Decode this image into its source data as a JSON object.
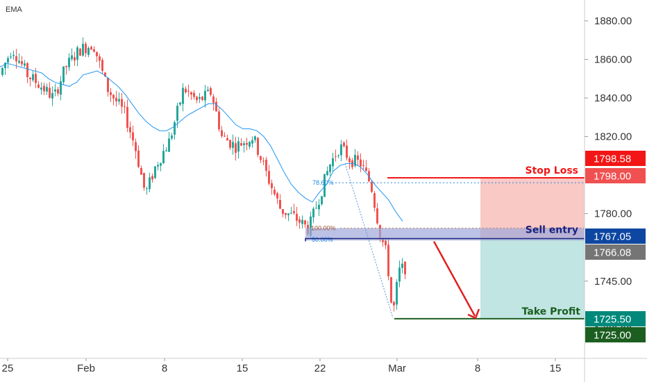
{
  "chart_data": {
    "type": "candlestick",
    "indicator": "EMA",
    "y_ticks": [
      1880.0,
      1860.0,
      1840.0,
      1820.0,
      1780.0,
      1745.0
    ],
    "y_tick_labels": [
      "1880.00",
      "1860.00",
      "1840.00",
      "1820.00",
      "1780.00",
      "1745.00"
    ],
    "x_tick_labels": [
      "25",
      "Feb",
      "8",
      "15",
      "22",
      "Mar",
      "8",
      "15"
    ],
    "price_tags": [
      {
        "label": "1798.58",
        "color": "#f21616"
      },
      {
        "label": "1798.00",
        "color": "#f05050"
      },
      {
        "label": "1767.05",
        "color": "#0d47a1"
      },
      {
        "label": "1766.08",
        "color": "#757575"
      },
      {
        "label": "1725.50",
        "color": "#00897b"
      },
      {
        "label": "1725.00",
        "color": "#1b5e20"
      }
    ],
    "levels": {
      "stop_loss": 1798.58,
      "sell_entry": 1767.05,
      "take_profit": 1725.5
    },
    "annotations": {
      "stop_loss": "Stop Loss",
      "sell_entry": "Sell entry",
      "take_profit": "Take Profit"
    },
    "fib_labels": {
      "f786": "78.60%",
      "f100": "100.00%",
      "f50": "50.00%"
    },
    "ema": [
      [
        0,
        1856
      ],
      [
        10,
        1858
      ],
      [
        20,
        1857
      ],
      [
        30,
        1856
      ],
      [
        40,
        1855
      ],
      [
        50,
        1854
      ],
      [
        60,
        1853
      ],
      [
        70,
        1850
      ],
      [
        80,
        1848
      ],
      [
        90,
        1847
      ],
      [
        100,
        1846
      ],
      [
        104,
        1847
      ],
      [
        110,
        1848
      ],
      [
        120,
        1852
      ],
      [
        130,
        1853
      ],
      [
        140,
        1854
      ],
      [
        150,
        1852
      ],
      [
        160,
        1849
      ],
      [
        170,
        1846
      ],
      [
        180,
        1842
      ],
      [
        190,
        1837
      ],
      [
        200,
        1832
      ],
      [
        210,
        1828
      ],
      [
        220,
        1825
      ],
      [
        230,
        1823
      ],
      [
        240,
        1823
      ],
      [
        250,
        1825
      ],
      [
        260,
        1828
      ],
      [
        270,
        1831
      ],
      [
        280,
        1833
      ],
      [
        290,
        1835
      ],
      [
        300,
        1837
      ],
      [
        310,
        1837
      ],
      [
        320,
        1834
      ],
      [
        330,
        1830
      ],
      [
        340,
        1826
      ],
      [
        350,
        1824
      ],
      [
        360,
        1824
      ],
      [
        370,
        1823
      ],
      [
        380,
        1820
      ],
      [
        390,
        1815
      ],
      [
        400,
        1808
      ],
      [
        410,
        1801
      ],
      [
        420,
        1795
      ],
      [
        430,
        1791
      ],
      [
        440,
        1788
      ],
      [
        450,
        1786
      ],
      [
        460,
        1791
      ],
      [
        470,
        1795
      ],
      [
        480,
        1802
      ],
      [
        490,
        1805
      ],
      [
        500,
        1806
      ],
      [
        510,
        1806
      ],
      [
        520,
        1804
      ],
      [
        530,
        1800
      ],
      [
        540,
        1795
      ],
      [
        550,
        1791
      ],
      [
        560,
        1787
      ],
      [
        570,
        1781
      ],
      [
        580,
        1776
      ]
    ]
  },
  "colors": {
    "up": "#26a69a",
    "down": "#ef5350",
    "ema": "#2196f3",
    "stop_loss": "#f21616",
    "sell_entry_band": "#9fa8da",
    "take_profit": "#1b5e20",
    "risk_zone": "#f8bbb8",
    "reward_zone": "#b2dfdb"
  }
}
